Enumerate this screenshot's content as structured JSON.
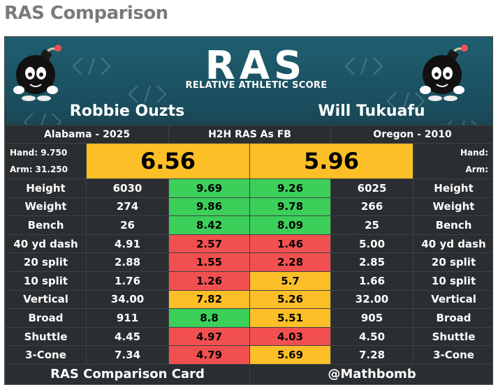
{
  "page_title": "RAS Comparison",
  "logo": {
    "wordmark": "RAS",
    "subtitle": "RELATIVE ATHLETIC SCORE"
  },
  "colors": {
    "good": "#3ccf5a",
    "bad": "#f25050",
    "mid": "#fcbf27",
    "header": "#1f5f70"
  },
  "left_player": {
    "name": "Robbie Ouzts",
    "school_year": "Alabama - 2025",
    "hand": "Hand: 9.750",
    "arm": "Arm: 31.250",
    "ras": "6.56"
  },
  "right_player": {
    "name": "Will Tukuafu",
    "school_year": "Oregon - 2010",
    "hand": "Hand:",
    "arm": "Arm:",
    "ras": "5.96"
  },
  "center_label": "H2H RAS As FB",
  "metrics": [
    {
      "label": "Height",
      "left_raw": "6030",
      "left_score": "9.69",
      "left_color": "green",
      "right_score": "9.26",
      "right_color": "green",
      "right_raw": "6025"
    },
    {
      "label": "Weight",
      "left_raw": "274",
      "left_score": "9.86",
      "left_color": "green",
      "right_score": "9.78",
      "right_color": "green",
      "right_raw": "266"
    },
    {
      "label": "Bench",
      "left_raw": "26",
      "left_score": "8.42",
      "left_color": "green",
      "right_score": "8.09",
      "right_color": "green",
      "right_raw": "25"
    },
    {
      "label": "40 yd dash",
      "left_raw": "4.91",
      "left_score": "2.57",
      "left_color": "red",
      "right_score": "1.46",
      "right_color": "red",
      "right_raw": "5.00"
    },
    {
      "label": "20 split",
      "left_raw": "2.88",
      "left_score": "1.55",
      "left_color": "red",
      "right_score": "2.28",
      "right_color": "red",
      "right_raw": "2.85"
    },
    {
      "label": "10 split",
      "left_raw": "1.76",
      "left_score": "1.26",
      "left_color": "red",
      "right_score": "5.7",
      "right_color": "yellow",
      "right_raw": "1.66"
    },
    {
      "label": "Vertical",
      "left_raw": "34.00",
      "left_score": "7.82",
      "left_color": "yellow",
      "right_score": "5.26",
      "right_color": "yellow",
      "right_raw": "32.00"
    },
    {
      "label": "Broad",
      "left_raw": "911",
      "left_score": "8.8",
      "left_color": "green",
      "right_score": "5.51",
      "right_color": "yellow",
      "right_raw": "905"
    },
    {
      "label": "Shuttle",
      "left_raw": "4.45",
      "left_score": "4.97",
      "left_color": "red",
      "right_score": "4.03",
      "right_color": "red",
      "right_raw": "4.50"
    },
    {
      "label": "3-Cone",
      "left_raw": "7.34",
      "left_score": "4.79",
      "left_color": "red",
      "right_score": "5.69",
      "right_color": "yellow",
      "right_raw": "7.28"
    }
  ],
  "footer": {
    "left": "RAS Comparison Card",
    "right": "@Mathbomb"
  }
}
